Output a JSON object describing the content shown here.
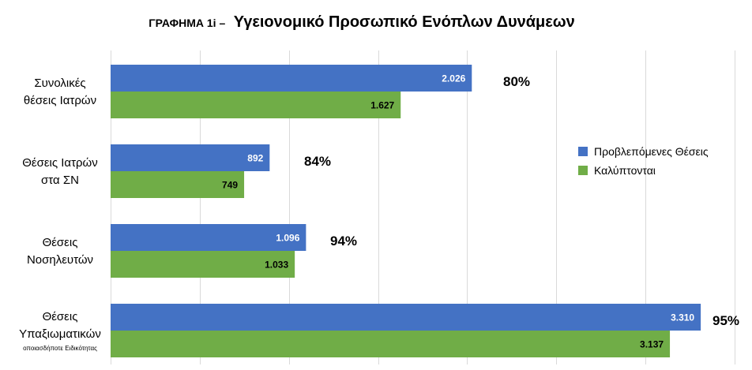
{
  "chart_data": {
    "type": "bar",
    "orientation": "horizontal",
    "title_prefix": "ΓΡΑΦΗΜΑ 1i –",
    "title": "Υγειονομικό Προσωπικό Ενόπλων Δυνάμεων",
    "xlabel": "",
    "ylabel": "",
    "xlim": [
      0,
      3500
    ],
    "grid": true,
    "legend_position": "right",
    "categories": [
      {
        "lines": [
          "Συνολικές",
          "θέσεις Ιατρών"
        ],
        "note": ""
      },
      {
        "lines": [
          "Θέσεις Ιατρών",
          "στα ΣΝ"
        ],
        "note": ""
      },
      {
        "lines": [
          "Θέσεις",
          "Νοσηλευτών"
        ],
        "note": ""
      },
      {
        "lines": [
          "Θέσεις",
          "Υπαξιωματικών"
        ],
        "note": "οποιασδήποτε Ειδικότητας"
      }
    ],
    "series": [
      {
        "name": "Προβλεπόμενες Θέσεις",
        "color": "#4472C4",
        "values": [
          2026,
          892,
          1096,
          3310
        ],
        "labels": [
          "2.026",
          "892",
          "1.096",
          "3.310"
        ]
      },
      {
        "name": "Καλύπτονται",
        "color": "#70AD47",
        "values": [
          1627,
          749,
          1033,
          3137
        ],
        "labels": [
          "1.627",
          "749",
          "1.033",
          "3.137"
        ]
      }
    ],
    "percentages": [
      "80%",
      "84%",
      "94%",
      "95%"
    ]
  }
}
